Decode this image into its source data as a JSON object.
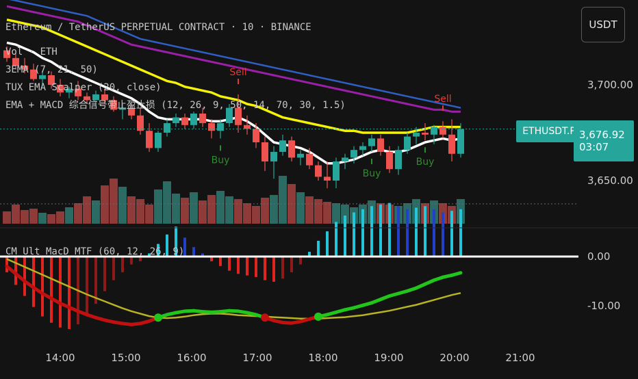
{
  "header": {
    "symbol_line": "Ethereum / TetherUS PERPETUAL CONTRACT · 10 · BINANCE",
    "currency_button": "USDT"
  },
  "indicators": [
    "Vol · ETH",
    "3EMA (7, 21, 50)",
    "TUX EMA Scalper (20, close)",
    "EMA + MACD 综合信号带止盈止损 (12, 26, 9, 50, 14, 70, 30, 1.5)"
  ],
  "macd_panel_label": "CM_Ult_MacD_MTF (60, 12, 26, 9)",
  "price_tag": {
    "symbol": "ETHUSDT.P",
    "price": "3,676.92",
    "countdown": "03:07"
  },
  "colors": {
    "up": "#26a69a",
    "down": "#ef5350",
    "vol_up": "#2b6b63",
    "vol_down": "#8f3b3a",
    "ema_yellow": "#f5f20a",
    "ema_purple": "#9c1fa8",
    "ema_blue": "#2f5fc4",
    "ema_white": "#ffffff",
    "macd_green": "#22c51b",
    "macd_red": "#c0100f",
    "signal_yellow": "#b7b323",
    "tag_bg": "#26a69a",
    "sell": "#e53935",
    "buy": "#2e8b2e"
  },
  "chart_data": {
    "type": "candlestick",
    "x_ticks": [
      "14:00",
      "15:00",
      "16:00",
      "17:00",
      "18:00",
      "19:00",
      "20:00",
      "21:00"
    ],
    "price_ticks": [
      "3,700.00",
      "3,650.00"
    ],
    "macd_ticks": [
      "0.00",
      "-10.00"
    ],
    "candles": [
      [
        3718,
        3720,
        3712,
        3714
      ],
      [
        3714,
        3717,
        3708,
        3710
      ],
      [
        3710,
        3714,
        3706,
        3708
      ],
      [
        3708,
        3711,
        3702,
        3703
      ],
      [
        3703,
        3707,
        3699,
        3705
      ],
      [
        3705,
        3707,
        3698,
        3700
      ],
      [
        3700,
        3703,
        3694,
        3696
      ],
      [
        3696,
        3699,
        3693,
        3698
      ],
      [
        3698,
        3702,
        3692,
        3694
      ],
      [
        3694,
        3696,
        3690,
        3692
      ],
      [
        3692,
        3697,
        3689,
        3695
      ],
      [
        3695,
        3698,
        3690,
        3692
      ],
      [
        3692,
        3694,
        3686,
        3687
      ],
      [
        3687,
        3690,
        3682,
        3688
      ],
      [
        3688,
        3690,
        3682,
        3684
      ],
      [
        3684,
        3688,
        3674,
        3676
      ],
      [
        3676,
        3680,
        3665,
        3667
      ],
      [
        3667,
        3676,
        3665,
        3675
      ],
      [
        3675,
        3682,
        3673,
        3680
      ],
      [
        3680,
        3685,
        3678,
        3683
      ],
      [
        3683,
        3685,
        3677,
        3679
      ],
      [
        3679,
        3686,
        3677,
        3685
      ],
      [
        3685,
        3688,
        3678,
        3680
      ],
      [
        3680,
        3682,
        3672,
        3676
      ],
      [
        3676,
        3682,
        3672,
        3680
      ],
      [
        3680,
        3690,
        3678,
        3688
      ],
      [
        3688,
        3695,
        3675,
        3679
      ],
      [
        3679,
        3684,
        3674,
        3677
      ],
      [
        3677,
        3680,
        3667,
        3670
      ],
      [
        3670,
        3673,
        3655,
        3660
      ],
      [
        3660,
        3668,
        3651,
        3665
      ],
      [
        3665,
        3674,
        3663,
        3671
      ],
      [
        3671,
        3673,
        3660,
        3662
      ],
      [
        3662,
        3666,
        3658,
        3664
      ],
      [
        3664,
        3667,
        3656,
        3658
      ],
      [
        3658,
        3660,
        3650,
        3652
      ],
      [
        3652,
        3660,
        3646,
        3650
      ],
      [
        3650,
        3662,
        3646,
        3660
      ],
      [
        3660,
        3664,
        3656,
        3662
      ],
      [
        3662,
        3668,
        3659,
        3666
      ],
      [
        3666,
        3670,
        3663,
        3668
      ],
      [
        3668,
        3674,
        3665,
        3672
      ],
      [
        3672,
        3674,
        3663,
        3665
      ],
      [
        3665,
        3668,
        3654,
        3656
      ],
      [
        3656,
        3668,
        3653,
        3666
      ],
      [
        3666,
        3675,
        3664,
        3673
      ],
      [
        3673,
        3678,
        3669,
        3675
      ],
      [
        3675,
        3680,
        3671,
        3674
      ],
      [
        3674,
        3679,
        3669,
        3678
      ],
      [
        3678,
        3681,
        3672,
        3674
      ],
      [
        3674,
        3682,
        3660,
        3664
      ],
      [
        3664,
        3680,
        3662,
        3676.92
      ]
    ],
    "volume": [
      18,
      28,
      20,
      22,
      16,
      14,
      18,
      24,
      30,
      40,
      34,
      56,
      66,
      54,
      40,
      36,
      28,
      50,
      62,
      44,
      38,
      46,
      34,
      42,
      48,
      40,
      36,
      30,
      26,
      38,
      42,
      70,
      58,
      46,
      40,
      36,
      32,
      30,
      28,
      24,
      28,
      34,
      30,
      28,
      26,
      30,
      36,
      30,
      34,
      30,
      26,
      36
    ],
    "ema_yellow": [
      3734,
      3733,
      3732,
      3731,
      3730,
      3728,
      3726,
      3724,
      3722,
      3720,
      3718,
      3716,
      3714,
      3712,
      3710,
      3708,
      3706,
      3704,
      3702,
      3701,
      3699,
      3698,
      3697,
      3696,
      3694,
      3693,
      3692,
      3690,
      3689,
      3687,
      3685,
      3683,
      3682,
      3681,
      3680,
      3679,
      3678,
      3677,
      3676,
      3676,
      3675,
      3675,
      3675,
      3675,
      3675,
      3675,
      3676,
      3677,
      3678,
      3678,
      3678,
      3678
    ],
    "ema_purple": [
      3741,
      3740,
      3739,
      3738,
      3737,
      3736,
      3735,
      3734,
      3733,
      3731,
      3729,
      3727,
      3725,
      3723,
      3721,
      3720,
      3719,
      3718,
      3717,
      3716,
      3715,
      3714,
      3713,
      3712,
      3711,
      3710,
      3709,
      3708,
      3707,
      3706,
      3705,
      3704,
      3703,
      3702,
      3701,
      3700,
      3699,
      3698,
      3697,
      3696,
      3695,
      3694,
      3693,
      3692,
      3691,
      3690,
      3689,
      3688,
      3687,
      3687,
      3686,
      3686
    ],
    "ema_blue": [
      3745,
      3744,
      3743,
      3742,
      3741,
      3740,
      3739,
      3738,
      3737,
      3736,
      3734,
      3732,
      3730,
      3728,
      3726,
      3724,
      3723,
      3722,
      3721,
      3720,
      3719,
      3718,
      3717,
      3716,
      3715,
      3714,
      3713,
      3712,
      3711,
      3710,
      3709,
      3708,
      3707,
      3706,
      3705,
      3704,
      3703,
      3702,
      3701,
      3700,
      3699,
      3698,
      3697,
      3696,
      3695,
      3694,
      3693,
      3692,
      3691,
      3690,
      3689,
      3688
    ],
    "ema_white": [
      3722,
      3721,
      3719,
      3717,
      3714,
      3712,
      3709,
      3707,
      3705,
      3703,
      3701,
      3699,
      3697,
      3695,
      3693,
      3690,
      3686,
      3683,
      3682,
      3682,
      3682,
      3682,
      3682,
      3681,
      3681,
      3682,
      3683,
      3681,
      3678,
      3674,
      3670,
      3669,
      3668,
      3667,
      3665,
      3662,
      3659,
      3659,
      3660,
      3661,
      3663,
      3665,
      3666,
      3665,
      3665,
      3666,
      3668,
      3670,
      3671,
      3672,
      3671,
      3672
    ],
    "histogram": [
      -1.0,
      -1.8,
      -2.5,
      -3.2,
      -3.8,
      -4.2,
      -4.5,
      -4.6,
      -4.3,
      -3.8,
      -3.0,
      -2.2,
      -1.5,
      -1.0,
      -0.5,
      -0.3,
      0.2,
      0.8,
      1.4,
      1.9,
      1.2,
      0.6,
      0.2,
      -0.3,
      -0.6,
      -0.9,
      -1.1,
      -1.2,
      -1.3,
      -1.5,
      -1.6,
      -1.4,
      -1.0,
      -0.5,
      0.3,
      1.0,
      1.6,
      2.2,
      2.6,
      2.8,
      3.0,
      3.2,
      3.3,
      3.4,
      3.2,
      3.0,
      3.1,
      3.2,
      3.0,
      2.8,
      2.9,
      3.0
    ],
    "macd_line": [
      -2.0,
      -3.5,
      -5.0,
      -6.3,
      -7.5,
      -8.5,
      -9.5,
      -10.3,
      -11.1,
      -11.8,
      -12.4,
      -12.9,
      -13.3,
      -13.6,
      -13.8,
      -13.6,
      -13.1,
      -12.4,
      -11.8,
      -11.4,
      -11.1,
      -11.0,
      -11.2,
      -11.3,
      -11.2,
      -11.0,
      -11.1,
      -11.4,
      -11.8,
      -12.4,
      -13.0,
      -13.4,
      -13.5,
      -13.2,
      -12.7,
      -12.2,
      -11.8,
      -11.3,
      -10.8,
      -10.4,
      -9.9,
      -9.4,
      -8.7,
      -8.0,
      -7.5,
      -7.0,
      -6.4,
      -5.6,
      -4.8,
      -4.2,
      -3.8,
      -3.3
    ],
    "signal_line": [
      -0.5,
      -1.3,
      -2.1,
      -2.9,
      -3.7,
      -4.5,
      -5.3,
      -6.1,
      -6.9,
      -7.7,
      -8.4,
      -9.1,
      -9.8,
      -10.5,
      -11.1,
      -11.6,
      -12.1,
      -12.4,
      -12.5,
      -12.4,
      -12.2,
      -11.9,
      -11.7,
      -11.6,
      -11.6,
      -11.7,
      -11.9,
      -12.0,
      -12.1,
      -12.2,
      -12.3,
      -12.4,
      -12.5,
      -12.6,
      -12.6,
      -12.6,
      -12.5,
      -12.4,
      -12.3,
      -12.1,
      -11.9,
      -11.6,
      -11.3,
      -11.0,
      -10.6,
      -10.2,
      -9.8,
      -9.3,
      -8.8,
      -8.3,
      -7.8,
      -7.4
    ],
    "signals": [
      {
        "type": "Sell",
        "index": 26
      },
      {
        "type": "Buy",
        "index": 24
      },
      {
        "type": "Buy",
        "index": 41
      },
      {
        "type": "Buy",
        "index": 47
      },
      {
        "type": "Sell",
        "index": 49
      }
    ],
    "grid": false
  }
}
